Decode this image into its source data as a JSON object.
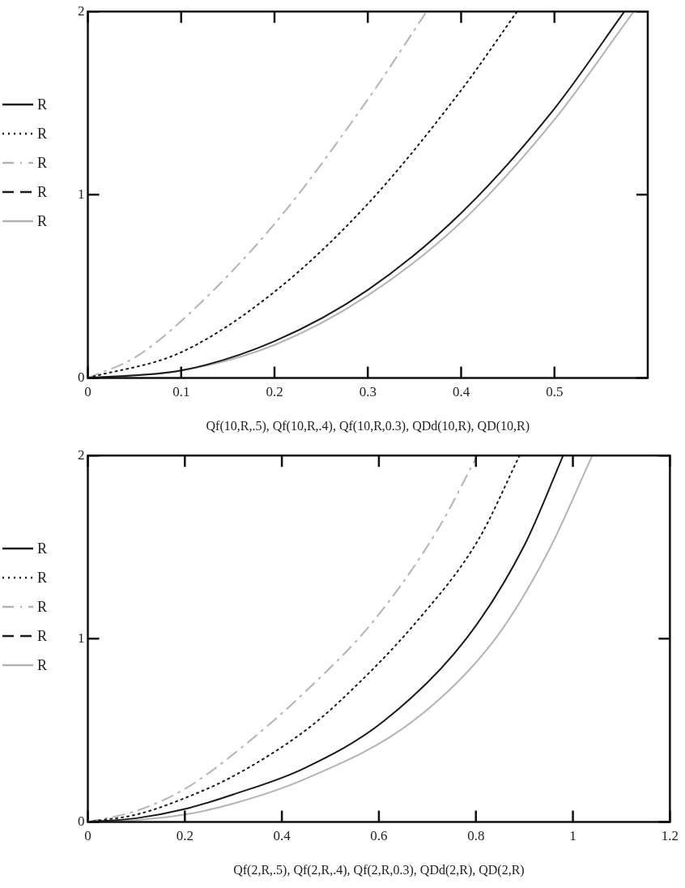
{
  "chart_data": [
    {
      "type": "line",
      "xlabel": "Qf(10,R,.5), Qf(10,R,.4), Qf(10,R,0.3), QDd(10,R), QD(10,R)",
      "xlim": [
        0,
        0.6
      ],
      "xticks": [
        0,
        0.1,
        0.2,
        0.3,
        0.4,
        0.5
      ],
      "ylim": [
        0,
        2
      ],
      "yticks": [
        0,
        1,
        2
      ],
      "grid": false,
      "legend": "left",
      "marker": "none",
      "series": [
        {
          "name": "R",
          "color": "#1a1a1a",
          "line_style": "solid",
          "x": [
            0,
            0.1,
            0.2,
            0.3,
            0.4,
            0.5,
            0.575
          ],
          "values": [
            0,
            0.04,
            0.2,
            0.48,
            0.9,
            1.47,
            2
          ]
        },
        {
          "name": "R",
          "color": "#1a1a1a",
          "line_style": "dotted",
          "x": [
            0,
            0.1,
            0.2,
            0.3,
            0.4,
            0.46
          ],
          "values": [
            0,
            0.14,
            0.47,
            0.95,
            1.57,
            2
          ]
        },
        {
          "name": "R",
          "color": "#b3b3b3",
          "line_style": "dashdot",
          "x": [
            0,
            0.05,
            0.1,
            0.2,
            0.3,
            0.363
          ],
          "values": [
            0,
            0.11,
            0.31,
            0.84,
            1.52,
            2
          ]
        },
        {
          "name": "R",
          "color": "#1a1a1a",
          "line_style": "dashed"
        },
        {
          "name": "R",
          "color": "#b3b3b3",
          "line_style": "solid",
          "x": [
            0,
            0.1,
            0.2,
            0.3,
            0.4,
            0.5,
            0.585
          ],
          "values": [
            0,
            0.04,
            0.18,
            0.45,
            0.85,
            1.41,
            2
          ]
        }
      ]
    },
    {
      "type": "line",
      "xlabel": "Qf(2,R,.5), Qf(2,R,.4), Qf(2,R,0.3), QDd(2,R), QD(2,R)",
      "xlim": [
        0,
        1.2
      ],
      "xticks": [
        0,
        0.2,
        0.4,
        0.6,
        0.8,
        1,
        1.2
      ],
      "ylim": [
        0,
        2
      ],
      "yticks": [
        0,
        1,
        2
      ],
      "grid": false,
      "legend": "left",
      "marker": "none",
      "series": [
        {
          "name": "R",
          "color": "#1a1a1a",
          "line_style": "solid",
          "x": [
            0,
            0.1,
            0.2,
            0.3,
            0.444,
            0.61,
            0.78,
            0.9,
            0.98
          ],
          "values": [
            0,
            0.02,
            0.07,
            0.15,
            0.29,
            0.55,
            1,
            1.51,
            2
          ]
        },
        {
          "name": "R",
          "color": "#1a1a1a",
          "line_style": "dotted",
          "x": [
            0,
            0.1,
            0.2,
            0.3,
            0.444,
            0.52,
            0.68,
            0.805,
            0.89
          ],
          "values": [
            0,
            0.04,
            0.13,
            0.25,
            0.49,
            0.66,
            1.1,
            1.54,
            2
          ]
        },
        {
          "name": "R",
          "color": "#b3b3b3",
          "line_style": "dashdot",
          "x": [
            0,
            0.1,
            0.2,
            0.3,
            0.444,
            0.59,
            0.72,
            0.803
          ],
          "values": [
            0,
            0.06,
            0.18,
            0.37,
            0.7,
            1.1,
            1.59,
            2
          ]
        },
        {
          "name": "R",
          "color": "#1a1a1a",
          "line_style": "dashed"
        },
        {
          "name": "R",
          "color": "#b3b3b3",
          "line_style": "solid",
          "x": [
            0,
            0.1,
            0.2,
            0.3,
            0.444,
            0.67,
            0.84,
            0.95,
            1.04
          ],
          "values": [
            0,
            0.01,
            0.04,
            0.1,
            0.23,
            0.55,
            1,
            1.48,
            2
          ]
        }
      ]
    }
  ]
}
